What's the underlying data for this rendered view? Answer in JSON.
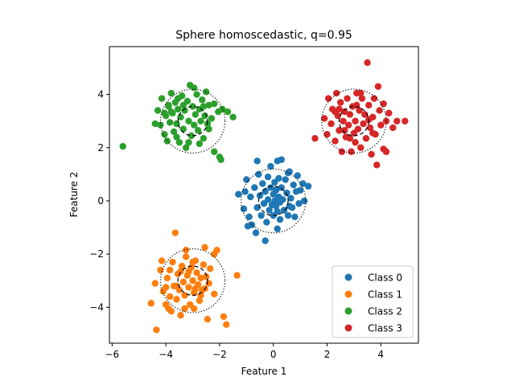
{
  "chart_data": {
    "type": "scatter",
    "title": "Sphere homoscedastic, q=0.95",
    "xlabel": "Feature 1",
    "ylabel": "Feature 2",
    "xlim": [
      -6.1,
      5.4
    ],
    "ylim": [
      -5.35,
      5.8
    ],
    "xticks": [
      -6,
      -4,
      -2,
      0,
      2,
      4
    ],
    "yticks": [
      -4,
      -2,
      0,
      2,
      4
    ],
    "tick_labels_x": [
      "−6",
      "−4",
      "−2",
      "0",
      "2",
      "4"
    ],
    "tick_labels_y": [
      "−4",
      "−2",
      "0",
      "2",
      "4"
    ],
    "grid": false,
    "legend_position": "lower-right",
    "series": [
      {
        "name": "Class 0",
        "color": "#1f77b4",
        "center": [
          0,
          0
        ],
        "inner_radius": 0.55,
        "outer_radius": 1.2,
        "points": [
          [
            -1.3,
            0.25
          ],
          [
            -1.1,
            -0.3
          ],
          [
            -1.0,
            0.8
          ],
          [
            -0.9,
            -0.6
          ],
          [
            -0.85,
            0.15
          ],
          [
            -0.8,
            -0.9
          ],
          [
            -0.7,
            0.5
          ],
          [
            -0.65,
            -1.2
          ],
          [
            -0.6,
            -0.25
          ],
          [
            -0.55,
            1.0
          ],
          [
            -0.5,
            0.2
          ],
          [
            -0.45,
            -0.55
          ],
          [
            -0.4,
            0.65
          ],
          [
            -0.35,
            -0.1
          ],
          [
            -0.3,
            -1.5
          ],
          [
            -0.3,
            0.35
          ],
          [
            -0.25,
            -0.8
          ],
          [
            -0.2,
            0.9
          ],
          [
            -0.2,
            0.05
          ],
          [
            -0.15,
            -0.35
          ],
          [
            -0.1,
            1.3
          ],
          [
            -0.1,
            0.5
          ],
          [
            -0.05,
            -0.15
          ],
          [
            0.0,
            0.25
          ],
          [
            0.0,
            -0.55
          ],
          [
            0.05,
            0.7
          ],
          [
            0.05,
            0.0
          ],
          [
            0.1,
            -0.2
          ],
          [
            0.1,
            0.4
          ],
          [
            0.15,
            1.5
          ],
          [
            0.15,
            -0.4
          ],
          [
            0.2,
            0.15
          ],
          [
            0.2,
            0.85
          ],
          [
            0.25,
            -0.05
          ],
          [
            0.25,
            -0.7
          ],
          [
            0.3,
            0.5
          ],
          [
            0.3,
            1.55
          ],
          [
            0.35,
            0.05
          ],
          [
            0.4,
            -0.35
          ],
          [
            0.45,
            0.8
          ],
          [
            0.5,
            0.3
          ],
          [
            0.55,
            -0.55
          ],
          [
            0.6,
            1.1
          ],
          [
            0.65,
            0.1
          ],
          [
            0.7,
            -0.25
          ],
          [
            0.75,
            0.6
          ],
          [
            0.8,
            -0.6
          ],
          [
            0.85,
            0.35
          ],
          [
            0.9,
            0.95
          ],
          [
            0.95,
            -0.1
          ],
          [
            1.0,
            0.4
          ],
          [
            1.1,
            0.65
          ],
          [
            1.15,
            0.0
          ],
          [
            1.3,
            0.55
          ],
          [
            -0.95,
            -0.95
          ],
          [
            -1.05,
            0.35
          ],
          [
            0.15,
            -1.05
          ],
          [
            -0.6,
            1.5
          ],
          [
            0.55,
            1.05
          ],
          [
            0.6,
            -0.2
          ]
        ]
      },
      {
        "name": "Class 1",
        "color": "#ff7f0e",
        "center": [
          -3,
          -3
        ],
        "inner_radius": 0.55,
        "outer_radius": 1.2,
        "points": [
          [
            -4.55,
            -3.85
          ],
          [
            -4.35,
            -4.85
          ],
          [
            -4.4,
            -3.1
          ],
          [
            -4.2,
            -2.6
          ],
          [
            -4.1,
            -3.4
          ],
          [
            -4.0,
            -3.9
          ],
          [
            -3.95,
            -2.9
          ],
          [
            -3.85,
            -3.6
          ],
          [
            -3.8,
            -4.15
          ],
          [
            -3.75,
            -2.3
          ],
          [
            -3.7,
            -3.2
          ],
          [
            -3.65,
            -1.2
          ],
          [
            -3.6,
            -3.7
          ],
          [
            -3.55,
            -2.75
          ],
          [
            -3.5,
            -3.35
          ],
          [
            -3.45,
            -4.3
          ],
          [
            -3.4,
            -2.45
          ],
          [
            -3.35,
            -3.05
          ],
          [
            -3.3,
            -3.55
          ],
          [
            -3.25,
            -2.1
          ],
          [
            -3.2,
            -2.8
          ],
          [
            -3.15,
            -3.25
          ],
          [
            -3.1,
            -3.9
          ],
          [
            -3.05,
            -2.5
          ],
          [
            -3.0,
            -3.0
          ],
          [
            -2.95,
            -3.45
          ],
          [
            -2.9,
            -2.25
          ],
          [
            -2.85,
            -2.7
          ],
          [
            -2.8,
            -3.15
          ],
          [
            -2.75,
            -3.75
          ],
          [
            -2.7,
            -2.9
          ],
          [
            -2.65,
            -3.35
          ],
          [
            -2.6,
            -2.4
          ],
          [
            -2.55,
            -1.75
          ],
          [
            -2.5,
            -2.85
          ],
          [
            -2.45,
            -4.45
          ],
          [
            -2.4,
            -3.1
          ],
          [
            -2.35,
            -2.55
          ],
          [
            -2.2,
            -3.5
          ],
          [
            -2.2,
            -2.0
          ],
          [
            -2.1,
            -1.85
          ],
          [
            -1.85,
            -4.35
          ],
          [
            -1.75,
            -4.65
          ],
          [
            -1.35,
            -2.8
          ],
          [
            -3.85,
            -2.6
          ],
          [
            -4.0,
            -3.25
          ],
          [
            -3.45,
            -2.65
          ],
          [
            -3.0,
            -2.3
          ],
          [
            -2.7,
            -3.55
          ],
          [
            -3.3,
            -4.05
          ],
          [
            -3.9,
            -4.05
          ],
          [
            -2.9,
            -3.3
          ],
          [
            -3.15,
            -2.65
          ],
          [
            -2.55,
            -3.3
          ],
          [
            -3.6,
            -3.2
          ],
          [
            -4.15,
            -2.25
          ],
          [
            -2.95,
            -4.05
          ],
          [
            -3.25,
            -1.85
          ]
        ]
      },
      {
        "name": "Class 2",
        "color": "#2ca02c",
        "center": [
          -3,
          3
        ],
        "inner_radius": 0.55,
        "outer_radius": 1.2,
        "points": [
          [
            -5.6,
            2.05
          ],
          [
            -4.4,
            2.9
          ],
          [
            -4.3,
            3.4
          ],
          [
            -4.2,
            2.85
          ],
          [
            -4.15,
            3.85
          ],
          [
            -4.05,
            2.5
          ],
          [
            -4.0,
            3.2
          ],
          [
            -3.95,
            2.25
          ],
          [
            -3.9,
            3.55
          ],
          [
            -3.85,
            2.95
          ],
          [
            -3.8,
            4.05
          ],
          [
            -3.75,
            3.3
          ],
          [
            -3.7,
            2.6
          ],
          [
            -3.65,
            3.7
          ],
          [
            -3.6,
            2.9
          ],
          [
            -3.55,
            3.45
          ],
          [
            -3.5,
            2.2
          ],
          [
            -3.45,
            3.15
          ],
          [
            -3.4,
            3.95
          ],
          [
            -3.35,
            2.7
          ],
          [
            -3.3,
            3.4
          ],
          [
            -3.25,
            2.0
          ],
          [
            -3.2,
            3.75
          ],
          [
            -3.15,
            3.0
          ],
          [
            -3.1,
            4.35
          ],
          [
            -3.05,
            2.45
          ],
          [
            -3.0,
            3.55
          ],
          [
            -2.95,
            2.85
          ],
          [
            -2.9,
            3.25
          ],
          [
            -2.85,
            4.0
          ],
          [
            -2.8,
            2.65
          ],
          [
            -2.75,
            3.45
          ],
          [
            -2.7,
            3.0
          ],
          [
            -2.65,
            3.8
          ],
          [
            -2.6,
            2.35
          ],
          [
            -2.55,
            3.2
          ],
          [
            -2.5,
            4.1
          ],
          [
            -2.45,
            2.9
          ],
          [
            -2.4,
            3.6
          ],
          [
            -2.3,
            3.1
          ],
          [
            -2.2,
            3.65
          ],
          [
            -2.2,
            1.85
          ],
          [
            -2.05,
            3.35
          ],
          [
            -2.0,
            1.65
          ],
          [
            -1.9,
            3.45
          ],
          [
            -1.7,
            3.35
          ],
          [
            -1.5,
            3.15
          ],
          [
            -3.9,
            3.6
          ],
          [
            -4.05,
            3.3
          ],
          [
            -3.35,
            3.6
          ],
          [
            -2.95,
            4.25
          ],
          [
            -3.6,
            2.4
          ],
          [
            -2.6,
            3.55
          ],
          [
            -3.15,
            2.2
          ],
          [
            -3.8,
            3.35
          ],
          [
            -2.4,
            2.7
          ],
          [
            -3.55,
            3.85
          ],
          [
            -2.75,
            2.15
          ],
          [
            -1.95,
            1.55
          ]
        ]
      },
      {
        "name": "Class 3",
        "color": "#d62728",
        "center": [
          3,
          3
        ],
        "inner_radius": 0.55,
        "outer_radius": 1.2,
        "points": [
          [
            1.55,
            2.35
          ],
          [
            1.9,
            3.1
          ],
          [
            2.0,
            2.5
          ],
          [
            2.05,
            3.85
          ],
          [
            2.15,
            2.9
          ],
          [
            2.2,
            3.45
          ],
          [
            2.3,
            2.25
          ],
          [
            2.35,
            4.05
          ],
          [
            2.4,
            3.2
          ],
          [
            2.45,
            2.65
          ],
          [
            2.5,
            3.7
          ],
          [
            2.55,
            1.85
          ],
          [
            2.6,
            3.0
          ],
          [
            2.65,
            3.35
          ],
          [
            2.7,
            2.4
          ],
          [
            2.75,
            3.85
          ],
          [
            2.8,
            2.85
          ],
          [
            2.85,
            3.25
          ],
          [
            2.9,
            1.85
          ],
          [
            2.95,
            3.55
          ],
          [
            3.0,
            2.55
          ],
          [
            3.05,
            3.0
          ],
          [
            3.1,
            4.05
          ],
          [
            3.15,
            2.7
          ],
          [
            3.2,
            3.4
          ],
          [
            3.25,
            2.0
          ],
          [
            3.3,
            3.85
          ],
          [
            3.35,
            2.9
          ],
          [
            3.4,
            3.25
          ],
          [
            3.45,
            2.35
          ],
          [
            3.5,
            5.2
          ],
          [
            3.55,
            3.6
          ],
          [
            3.6,
            2.75
          ],
          [
            3.65,
            1.75
          ],
          [
            3.7,
            3.15
          ],
          [
            3.75,
            3.85
          ],
          [
            3.8,
            2.5
          ],
          [
            3.85,
            1.35
          ],
          [
            3.9,
            4.3
          ],
          [
            3.95,
            3.4
          ],
          [
            4.0,
            2.85
          ],
          [
            4.1,
            3.65
          ],
          [
            4.2,
            3.0
          ],
          [
            4.3,
            3.3
          ],
          [
            4.45,
            2.75
          ],
          [
            4.6,
            3.0
          ],
          [
            4.9,
            3.0
          ],
          [
            2.65,
            2.65
          ],
          [
            3.1,
            3.6
          ],
          [
            2.85,
            2.35
          ],
          [
            3.55,
            3.05
          ],
          [
            3.25,
            4.05
          ],
          [
            2.45,
            3.45
          ],
          [
            3.7,
            2.55
          ],
          [
            3.05,
            2.2
          ],
          [
            4.1,
            1.95
          ],
          [
            4.2,
            1.85
          ],
          [
            2.3,
            3.35
          ]
        ]
      }
    ]
  }
}
